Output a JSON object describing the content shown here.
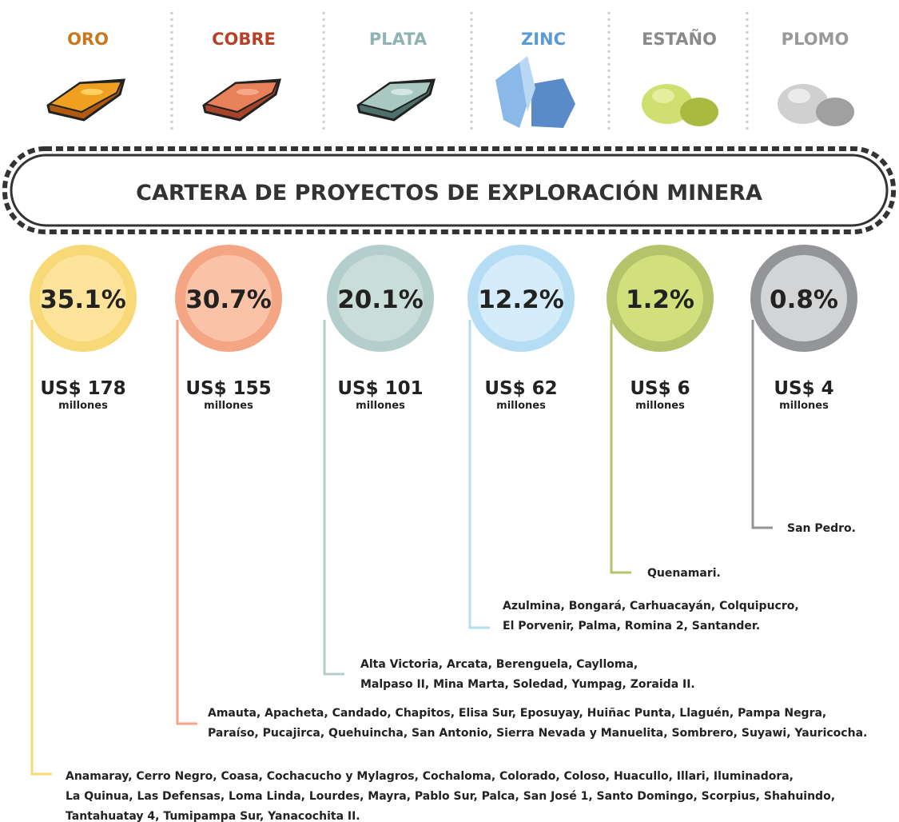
{
  "title": "CARTERA DE PROYECTOS DE EXPLORACIÓN MINERA",
  "minerals": [
    {
      "name": "ORO",
      "percent": "35.1%",
      "amount": "US$ 178",
      "unit": "millones",
      "projects": [
        "Anamaray, Cerro Negro, Coasa, Cochacucho y Mylagros, Cochaloma, Colorado, Coloso, Huacullo, Illari, Iluminadora,",
        "La Quinua, Las Defensas, Loma Linda, Lourdes, Mayra, Pablo Sur, Palca, San José 1, Santo Domingo, Scorpius, Shahuindo,",
        "Tantahuatay 4, Tumipampa Sur, Yanacochita II."
      ]
    },
    {
      "name": "COBRE",
      "percent": "30.7%",
      "amount": "US$ 155",
      "unit": "millones",
      "projects": [
        "Amauta, Apacheta, Candado, Chapitos, Elisa Sur, Eposuyay, Huiñac Punta, Llaguén, Pampa Negra,",
        "Paraíso, Pucajirca, Quehuincha, San Antonio, Sierra Nevada y Manuelita, Sombrero, Suyawi, Yauricocha."
      ]
    },
    {
      "name": "PLATA",
      "percent": "20.1%",
      "amount": "US$ 101",
      "unit": "millones",
      "projects": [
        "Alta Victoria, Arcata, Berenguela, Caylloma,",
        "Malpaso II, Mina Marta, Soledad, Yumpag, Zoraida II."
      ]
    },
    {
      "name": "ZINC",
      "percent": "12.2%",
      "amount": "US$ 62",
      "unit": "millones",
      "projects": [
        "Azulmina, Bongará, Carhuacayán, Colquipucro,",
        "El Porvenir, Palma, Romina 2, Santander."
      ]
    },
    {
      "name": "ESTAÑO",
      "percent": "1.2%",
      "amount": "US$ 6",
      "unit": "millones",
      "projects": [
        "Quenamari."
      ]
    },
    {
      "name": "PLOMO",
      "percent": "0.8%",
      "amount": "US$ 4",
      "unit": "millones",
      "projects": [
        "San Pedro."
      ]
    }
  ]
}
